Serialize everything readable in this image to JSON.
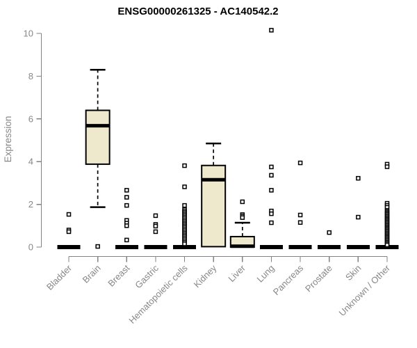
{
  "title": "ENSG00000261325 - AC140542.2",
  "chart_data": {
    "type": "boxplot",
    "title": "ENSG00000261325 - AC140542.2",
    "xlabel": "",
    "ylabel": "Expression",
    "ylim": [
      0,
      10
    ],
    "yticks": [
      0,
      2,
      4,
      6,
      8,
      10
    ],
    "grid": false,
    "legend": "none",
    "categories": [
      "Bladder",
      "Brain",
      "Breast",
      "Gastric",
      "Hematopoietic cells",
      "Kidney",
      "Liver",
      "Lung",
      "Pancreas",
      "Prostate",
      "Skin",
      "Unknown / Other"
    ],
    "boxes": [
      {
        "category": "Bladder",
        "q1": 0,
        "median": 0,
        "q3": 0,
        "whisker_low": 0,
        "whisker_high": 0,
        "outliers": [
          1.53,
          0.8,
          0.72
        ]
      },
      {
        "category": "Brain",
        "q1": 3.88,
        "median": 5.68,
        "q3": 6.4,
        "whisker_low": 1.87,
        "whisker_high": 8.3,
        "outliers": [
          0.03
        ]
      },
      {
        "category": "Breast",
        "q1": 0,
        "median": 0,
        "q3": 0,
        "whisker_low": 0,
        "whisker_high": 0,
        "outliers": [
          2.66,
          2.33,
          1.95,
          1.25,
          1.12,
          1.0,
          0.33
        ]
      },
      {
        "category": "Gastric",
        "q1": 0,
        "median": 0,
        "q3": 0,
        "whisker_low": 0,
        "whisker_high": 0,
        "outliers": [
          1.47,
          1.06,
          0.98,
          0.72
        ]
      },
      {
        "category": "Hematopoietic cells",
        "q1": 0,
        "median": 0,
        "q3": 0,
        "whisker_low": 0,
        "whisker_high": 0,
        "outliers": [
          3.81,
          2.82,
          1.95,
          1.76,
          1.69,
          1.62,
          1.55,
          1.48,
          1.41,
          1.34,
          1.27,
          1.2,
          1.13,
          1.06,
          0.99,
          0.92,
          0.85,
          0.78,
          0.71,
          0.64,
          0.57,
          0.5,
          0.43,
          0.36,
          0.29,
          0.22,
          0.15
        ]
      },
      {
        "category": "Kidney",
        "q1": 0.02,
        "median": 3.15,
        "q3": 3.82,
        "whisker_low": 0,
        "whisker_high": 4.85,
        "outliers": []
      },
      {
        "category": "Liver",
        "q1": 0,
        "median": 0.04,
        "q3": 0.49,
        "whisker_low": 0,
        "whisker_high": 1.14,
        "outliers": [
          2.12,
          1.52,
          1.45,
          1.38
        ]
      },
      {
        "category": "Lung",
        "q1": 0,
        "median": 0,
        "q3": 0,
        "whisker_low": 0,
        "whisker_high": 0,
        "outliers": [
          10.15,
          3.75,
          3.36,
          2.66,
          1.69,
          1.56,
          1.14
        ]
      },
      {
        "category": "Pancreas",
        "q1": 0,
        "median": 0,
        "q3": 0,
        "whisker_low": 0,
        "whisker_high": 0,
        "outliers": [
          3.94,
          1.5,
          1.15
        ]
      },
      {
        "category": "Prostate",
        "q1": 0,
        "median": 0,
        "q3": 0,
        "whisker_low": 0,
        "whisker_high": 0,
        "outliers": [
          0.68
        ]
      },
      {
        "category": "Skin",
        "q1": 0,
        "median": 0,
        "q3": 0,
        "whisker_low": 0,
        "whisker_high": 0,
        "outliers": [
          3.22,
          1.4
        ]
      },
      {
        "category": "Unknown / Other",
        "q1": 0,
        "median": 0,
        "q3": 0,
        "whisker_low": 0,
        "whisker_high": 0,
        "outliers": [
          3.88,
          3.76,
          2.05,
          1.95,
          1.86,
          1.72,
          1.66,
          1.6,
          1.54,
          1.48,
          1.42,
          1.36,
          1.3,
          1.24,
          1.18,
          1.12,
          1.06,
          1.0,
          0.94,
          0.88,
          0.82,
          0.76,
          0.7,
          0.64,
          0.58,
          0.52,
          0.46,
          0.4,
          0.34,
          0.28,
          0.22,
          0.16,
          0.1
        ]
      }
    ],
    "colors": {
      "box_fill": "#EEE8CD",
      "box_stroke": "#000000",
      "median": "#000000",
      "flat_bar": "#000000",
      "outlier_stroke": "#000000",
      "outlier_fill": "#FFFFFF",
      "axis": "#828282",
      "tick_text": "#878787",
      "title_text": "#000000",
      "background": "#FFFFFF"
    }
  }
}
